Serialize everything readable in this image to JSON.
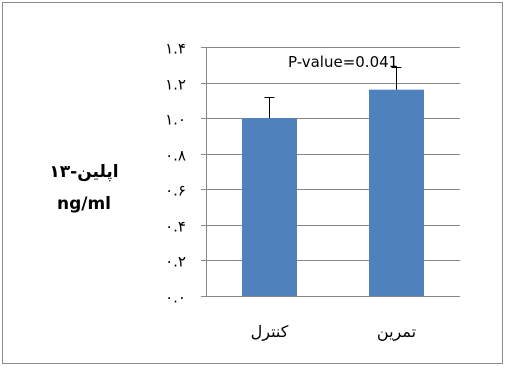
{
  "chart_data": {
    "type": "bar",
    "categories": [
      "كنترل",
      "تمرين"
    ],
    "values": [
      1.0,
      1.16
    ],
    "errors": [
      0.12,
      0.13
    ],
    "ylabel_lines": [
      "اپلين-۱۳",
      "ng/ml"
    ],
    "ylim": [
      0,
      1.4
    ],
    "yticks": [
      0,
      0.2,
      0.4,
      0.6,
      0.8,
      1.0,
      1.2,
      1.4
    ],
    "ytick_labels": [
      "۰.۰",
      "۰.۲",
      "۰.۴",
      "۰.۶",
      "۰.۸",
      "۱.۰",
      "۱.۲",
      "۱.۴"
    ],
    "annotation": "P-value=0.041",
    "grid": true,
    "bar_color": "#4f81bd",
    "axis_color": "#868686",
    "grid_color": "#868686"
  }
}
